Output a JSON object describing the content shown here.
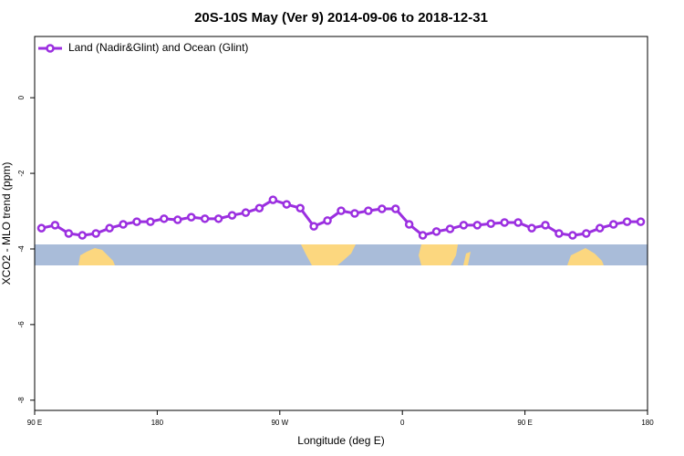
{
  "chart_data": {
    "type": "line",
    "title": "20S-10S May (Ver 9)   2014-09-06 to 2018-12-31",
    "x_label": "Longitude (deg E)",
    "y_label": "XCO2 - MLO trend (ppm)",
    "legend_position": "top-left",
    "xlim": [
      90,
      540
    ],
    "ylim": [
      -8.27,
      1.62
    ],
    "xticks": [
      {
        "value": 90,
        "label": "90 E"
      },
      {
        "value": 180,
        "label": "180"
      },
      {
        "value": 270,
        "label": "90 W"
      },
      {
        "value": 360,
        "label": "0"
      },
      {
        "value": 450,
        "label": "90 E"
      },
      {
        "value": 540,
        "label": "180"
      }
    ],
    "yticks": [
      -8,
      -6,
      -4,
      -2,
      0
    ],
    "x": [
      95,
      105,
      115,
      125,
      135,
      145,
      155,
      165,
      175,
      185,
      195,
      205,
      215,
      225,
      235,
      245,
      255,
      265,
      275,
      285,
      295,
      305,
      315,
      325,
      335,
      345,
      355,
      365,
      375,
      385,
      395,
      405,
      415,
      425,
      435,
      445,
      455,
      465,
      475,
      485,
      495,
      505,
      515,
      525,
      535
    ],
    "series": [
      {
        "name": "Land (Nadir&Glint) and Ocean (Glint)",
        "color": "#9b2fe0",
        "values": [
          -3.45,
          -3.37,
          -3.59,
          -3.64,
          -3.59,
          -3.45,
          -3.35,
          -3.28,
          -3.28,
          -3.2,
          -3.23,
          -3.16,
          -3.2,
          -3.2,
          -3.11,
          -3.04,
          -2.92,
          -2.7,
          -2.82,
          -2.92,
          -3.4,
          -3.25,
          -2.99,
          -3.06,
          -2.99,
          -2.94,
          -2.94,
          -3.35,
          -3.64,
          -3.54,
          -3.47,
          -3.37,
          -3.37,
          -3.33,
          -3.3,
          -3.3,
          -3.45,
          -3.37,
          -3.59,
          -3.64,
          -3.59,
          -3.45,
          -3.35,
          -3.28,
          -3.28
        ]
      }
    ]
  }
}
